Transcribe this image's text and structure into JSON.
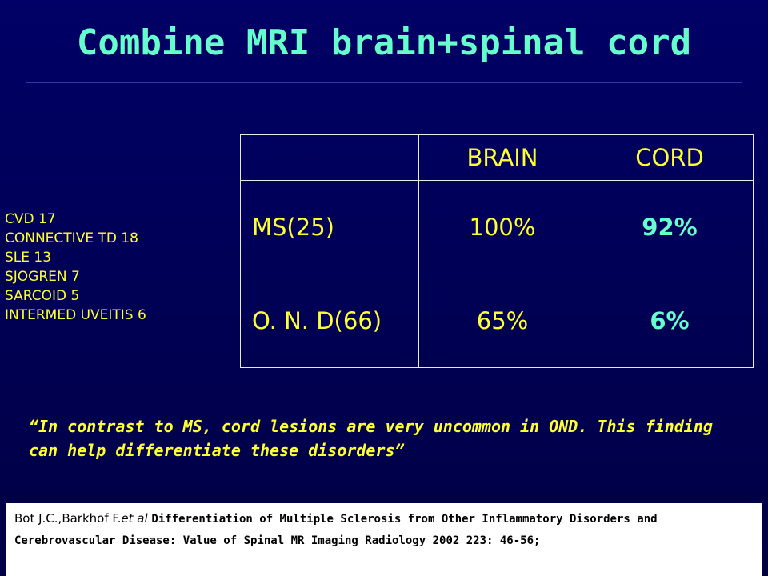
{
  "slide": {
    "title": "Combine MRI brain+spinal cord"
  },
  "side_list": [
    "CVD 17",
    "CONNECTIVE TD 18",
    "SLE 13",
    "SJOGREN 7",
    "SARCOID 5",
    "INTERMED UVEITIS 6"
  ],
  "table": {
    "headers": [
      "",
      "BRAIN",
      "CORD"
    ],
    "rows": [
      [
        "MS(25)",
        "100%",
        "92%"
      ],
      [
        "O. N. D(66)",
        "65%",
        "6%"
      ]
    ]
  },
  "quote": "“In contrast to MS, cord lesions are very uncommon in OND.  This finding can help differentiate these disorders”",
  "citation": {
    "authors": "Bot J.C.,Barkhof F.",
    "etal": "et al",
    "text": "Differentiation of Multiple Sclerosis from Other Inflammatory Disorders and Cerebrovascular Disease: Value of Spinal MR Imaging  Radiology 2002 223: 46-56;"
  },
  "colors": {
    "background": "#000066",
    "title": "#66ffcc",
    "text": "#ffff33",
    "highlight": "#66ffcc"
  }
}
